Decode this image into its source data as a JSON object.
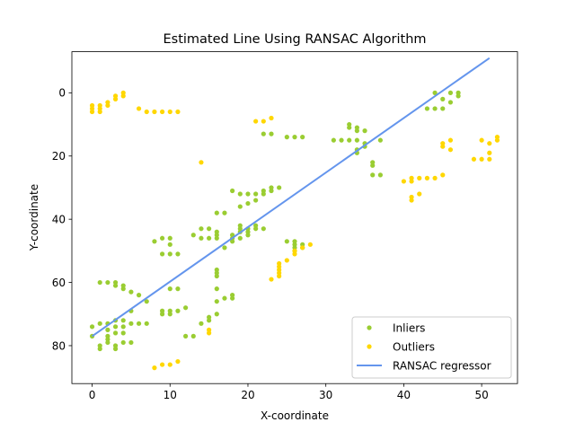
{
  "chart_data": {
    "type": "scatter",
    "title": "Estimated Line Using RANSAC Algorithm",
    "xlabel": "X-coordinate",
    "ylabel": "Y-coordinate",
    "xlim": [
      -2.6,
      54.6
    ],
    "ylim": [
      92,
      -13
    ],
    "y_inverted": true,
    "xticks": [
      0,
      10,
      20,
      30,
      40,
      50
    ],
    "yticks": [
      0,
      20,
      40,
      60,
      80
    ],
    "grid": false,
    "legend_position": "lower-right",
    "colors": {
      "inliers": "#9acd32",
      "outliers": "#ffd700",
      "regressor": "#6495ed"
    },
    "series": [
      {
        "name": "Inliers",
        "kind": "scatter",
        "points": [
          [
            0,
            74
          ],
          [
            0,
            77
          ],
          [
            1,
            73
          ],
          [
            1,
            80
          ],
          [
            1,
            81
          ],
          [
            2,
            73
          ],
          [
            2,
            75
          ],
          [
            2,
            77
          ],
          [
            2,
            78
          ],
          [
            2,
            79
          ],
          [
            3,
            72
          ],
          [
            3,
            74
          ],
          [
            3,
            76
          ],
          [
            3,
            80
          ],
          [
            3,
            81
          ],
          [
            4,
            72
          ],
          [
            4,
            74
          ],
          [
            4,
            76
          ],
          [
            4,
            79
          ],
          [
            5,
            69
          ],
          [
            5,
            73
          ],
          [
            5,
            79
          ],
          [
            1,
            60
          ],
          [
            2,
            60
          ],
          [
            3,
            60
          ],
          [
            3,
            61
          ],
          [
            4,
            61
          ],
          [
            4,
            62
          ],
          [
            5,
            63
          ],
          [
            6,
            64
          ],
          [
            7,
            66
          ],
          [
            6,
            73
          ],
          [
            7,
            73
          ],
          [
            8,
            47
          ],
          [
            9,
            46
          ],
          [
            9,
            51
          ],
          [
            10,
            46
          ],
          [
            10,
            48
          ],
          [
            10,
            51
          ],
          [
            11,
            51
          ],
          [
            9,
            69
          ],
          [
            9,
            70
          ],
          [
            10,
            69
          ],
          [
            10,
            70
          ],
          [
            11,
            69
          ],
          [
            10,
            62
          ],
          [
            11,
            62
          ],
          [
            12,
            68
          ],
          [
            12,
            77
          ],
          [
            13,
            45
          ],
          [
            13,
            77
          ],
          [
            14,
            43
          ],
          [
            14,
            46
          ],
          [
            15,
            43
          ],
          [
            15,
            46
          ],
          [
            15,
            71
          ],
          [
            15,
            72
          ],
          [
            14,
            73
          ],
          [
            16,
            44
          ],
          [
            16,
            45
          ],
          [
            16,
            46
          ],
          [
            16,
            38
          ],
          [
            16,
            56
          ],
          [
            16,
            57
          ],
          [
            16,
            58
          ],
          [
            16,
            62
          ],
          [
            16,
            66
          ],
          [
            16,
            70
          ],
          [
            17,
            38
          ],
          [
            17,
            49
          ],
          [
            17,
            65
          ],
          [
            18,
            31
          ],
          [
            18,
            45
          ],
          [
            18,
            46
          ],
          [
            18,
            47
          ],
          [
            18,
            64
          ],
          [
            18,
            65
          ],
          [
            19,
            32
          ],
          [
            19,
            36
          ],
          [
            19,
            42
          ],
          [
            19,
            43
          ],
          [
            19,
            44
          ],
          [
            19,
            46
          ],
          [
            20,
            32
          ],
          [
            20,
            35
          ],
          [
            20,
            43
          ],
          [
            20,
            44
          ],
          [
            20,
            45
          ],
          [
            21,
            32
          ],
          [
            21,
            34
          ],
          [
            21,
            42
          ],
          [
            21,
            43
          ],
          [
            22,
            13
          ],
          [
            22,
            31
          ],
          [
            22,
            32
          ],
          [
            22,
            43
          ],
          [
            23,
            13
          ],
          [
            23,
            30
          ],
          [
            23,
            31
          ],
          [
            24,
            30
          ],
          [
            25,
            14
          ],
          [
            25,
            47
          ],
          [
            26,
            14
          ],
          [
            26,
            47
          ],
          [
            26,
            48
          ],
          [
            26,
            49
          ],
          [
            26,
            50
          ],
          [
            27,
            14
          ],
          [
            27,
            48
          ],
          [
            27,
            49
          ],
          [
            31,
            15
          ],
          [
            32,
            15
          ],
          [
            33,
            10
          ],
          [
            33,
            11
          ],
          [
            33,
            15
          ],
          [
            34,
            11
          ],
          [
            34,
            12
          ],
          [
            34,
            15
          ],
          [
            34,
            18
          ],
          [
            34,
            19
          ],
          [
            35,
            12
          ],
          [
            35,
            16
          ],
          [
            35,
            17
          ],
          [
            36,
            22
          ],
          [
            36,
            23
          ],
          [
            36,
            26
          ],
          [
            37,
            15
          ],
          [
            37,
            26
          ],
          [
            43,
            5
          ],
          [
            44,
            0
          ],
          [
            44,
            5
          ],
          [
            45,
            2
          ],
          [
            45,
            5
          ],
          [
            46,
            0
          ],
          [
            46,
            3
          ],
          [
            47,
            0
          ],
          [
            47,
            1
          ]
        ]
      },
      {
        "name": "Outliers",
        "kind": "scatter",
        "points": [
          [
            0,
            4
          ],
          [
            0,
            5
          ],
          [
            0,
            6
          ],
          [
            1,
            4
          ],
          [
            1,
            5
          ],
          [
            1,
            6
          ],
          [
            2,
            3
          ],
          [
            2,
            4
          ],
          [
            3,
            1
          ],
          [
            3,
            2
          ],
          [
            4,
            0
          ],
          [
            4,
            1
          ],
          [
            6,
            5
          ],
          [
            7,
            6
          ],
          [
            8,
            6
          ],
          [
            9,
            6
          ],
          [
            10,
            6
          ],
          [
            11,
            6
          ],
          [
            8,
            87
          ],
          [
            9,
            86
          ],
          [
            10,
            86
          ],
          [
            11,
            85
          ],
          [
            14,
            22
          ],
          [
            15,
            75
          ],
          [
            15,
            76
          ],
          [
            21,
            9
          ],
          [
            22,
            9
          ],
          [
            23,
            8
          ],
          [
            23,
            59
          ],
          [
            24,
            54
          ],
          [
            24,
            55
          ],
          [
            24,
            56
          ],
          [
            24,
            57
          ],
          [
            24,
            58
          ],
          [
            25,
            53
          ],
          [
            26,
            50
          ],
          [
            26,
            51
          ],
          [
            27,
            49
          ],
          [
            28,
            48
          ],
          [
            40,
            28
          ],
          [
            41,
            27
          ],
          [
            41,
            28
          ],
          [
            41,
            33
          ],
          [
            41,
            34
          ],
          [
            42,
            32
          ],
          [
            42,
            27
          ],
          [
            43,
            27
          ],
          [
            44,
            27
          ],
          [
            45,
            16
          ],
          [
            45,
            17
          ],
          [
            45,
            26
          ],
          [
            46,
            15
          ],
          [
            46,
            18
          ],
          [
            49,
            21
          ],
          [
            50,
            15
          ],
          [
            50,
            21
          ],
          [
            51,
            16
          ],
          [
            51,
            19
          ],
          [
            51,
            21
          ],
          [
            52,
            14
          ],
          [
            52,
            15
          ]
        ]
      },
      {
        "name": "RANSAC regressor",
        "kind": "line",
        "points": [
          [
            0,
            77
          ],
          [
            51,
            -11
          ]
        ]
      }
    ]
  }
}
